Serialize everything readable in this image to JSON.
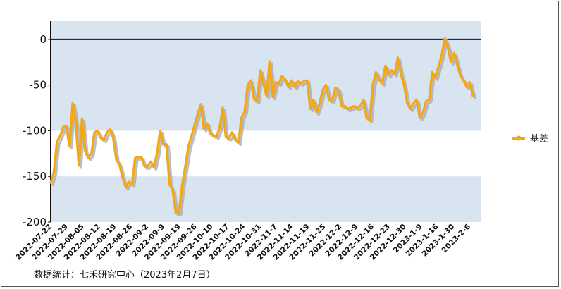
{
  "chart_data": {
    "type": "line",
    "ylim": [
      -200,
      20
    ],
    "yticks": [
      0,
      -50,
      -100,
      -150,
      -200
    ],
    "xticks": [
      "2022-07-22",
      "2022-07-29",
      "2022-08-05",
      "2022-08-12",
      "2022-08-19",
      "2022-08-26",
      "2022-09-2",
      "2022-09-9",
      "2022-09-19",
      "2022-09-26",
      "2022-10-10",
      "2022-10-17",
      "2022-10-24",
      "2022-10-31",
      "2022-11-7",
      "2022-11-14",
      "2022-11-19",
      "2022-11-25",
      "2022-12-2",
      "2022-12-9",
      "2022-12-16",
      "2022-12-23",
      "2022-12-30",
      "2023-1-9",
      "2023-1-16",
      "2023-1-30",
      "2023-2-6"
    ],
    "grid": "alternating horizontal bands",
    "legend_position": "right",
    "series": [
      {
        "name": "基差",
        "color": "#F2A818",
        "shadow_color": "#A8A8A8",
        "values": [
          -157,
          -146,
          -112,
          -106,
          -96,
          -95,
          -117,
          -70,
          -90,
          -138,
          -87,
          -122,
          -130,
          -125,
          -102,
          -100,
          -108,
          -110,
          -102,
          -98,
          -108,
          -132,
          -137,
          -152,
          -162,
          -156,
          -159,
          -130,
          -129,
          -129,
          -139,
          -139,
          -134,
          -140,
          -125,
          -100,
          -115,
          -115,
          -159,
          -165,
          -190,
          -190,
          -160,
          -140,
          -118,
          -106,
          -94,
          -82,
          -71,
          -98,
          -92,
          -103,
          -105,
          -106,
          -97,
          -75,
          -107,
          -108,
          -102,
          -110,
          -113,
          -86,
          -79,
          -50,
          -45,
          -65,
          -68,
          -34,
          -48,
          -62,
          -24,
          -63,
          -47,
          -48,
          -40,
          -45,
          -52,
          -45,
          -52,
          -46,
          -48,
          -46,
          -45,
          -76,
          -66,
          -80,
          -70,
          -55,
          -50,
          -66,
          -67,
          -53,
          -55,
          -73,
          -73,
          -76,
          -75,
          -73,
          -75,
          -73,
          -66,
          -86,
          -88,
          -50,
          -36,
          -44,
          -48,
          -29,
          -39,
          -34,
          -38,
          -20,
          -38,
          -50,
          -70,
          -76,
          -70,
          -66,
          -86,
          -81,
          -68,
          -66,
          -36,
          -42,
          -30,
          -18,
          1,
          -8,
          -25,
          -15,
          -28,
          -40,
          -45,
          -52,
          -47,
          -62
        ]
      }
    ]
  },
  "legend": {
    "label": "基差"
  },
  "source_note": "数据统计：七禾研究中心（2023年2月7日）"
}
